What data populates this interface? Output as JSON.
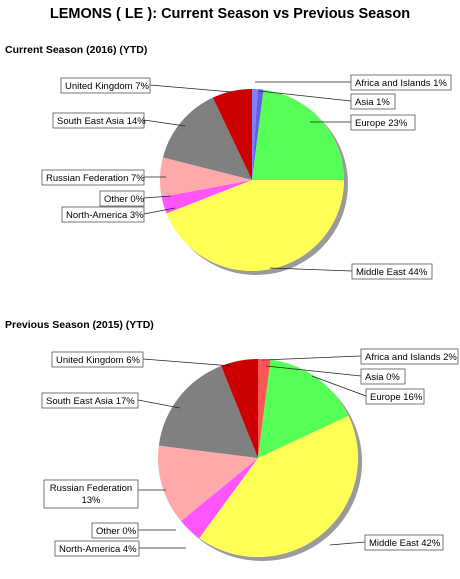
{
  "title": "LEMONS ( LE ): Current Season vs Previous Season",
  "chart_data": [
    {
      "type": "pie",
      "title": "Current Season (2016) (YTD)",
      "slices": [
        {
          "name": "Africa and Islands",
          "value": 1,
          "label": "Africa and Islands 1%",
          "color": "#8080ff"
        },
        {
          "name": "Asia",
          "value": 1,
          "label": "Asia 1%",
          "color": "#6060e0"
        },
        {
          "name": "Europe",
          "value": 23,
          "label": "Europe 23%",
          "color": "#55ff55"
        },
        {
          "name": "Middle East",
          "value": 44,
          "label": "Middle East 44%",
          "color": "#ffff55"
        },
        {
          "name": "North-America",
          "value": 3,
          "label": "North-America 3%",
          "color": "#ff55ff"
        },
        {
          "name": "Other",
          "value": 0,
          "label": "Other 0%",
          "color": "#cccccc"
        },
        {
          "name": "Russian Federation",
          "value": 7,
          "label": "Russian Federation 7%",
          "color": "#ffaaaa"
        },
        {
          "name": "South East Asia",
          "value": 14,
          "label": "South East Asia 14%",
          "color": "#808080"
        },
        {
          "name": "United Kingdom",
          "value": 7,
          "label": "United Kingdom 7%",
          "color": "#cc0000"
        }
      ]
    },
    {
      "type": "pie",
      "title": "Previous Season (2015) (YTD)",
      "slices": [
        {
          "name": "Africa and Islands",
          "value": 2,
          "label": "Africa and Islands 2%",
          "color": "#ff5555"
        },
        {
          "name": "Asia",
          "value": 0,
          "label": "Asia 0%",
          "color": "#6060e0"
        },
        {
          "name": "Europe",
          "value": 16,
          "label": "Europe 16%",
          "color": "#55ff55"
        },
        {
          "name": "Middle East",
          "value": 42,
          "label": "Middle East 42%",
          "color": "#ffff55"
        },
        {
          "name": "North-America",
          "value": 4,
          "label": "North-America 4%",
          "color": "#ff55ff"
        },
        {
          "name": "Other",
          "value": 0,
          "label": "Other 0%",
          "color": "#cccccc"
        },
        {
          "name": "Russian Federation",
          "value": 13,
          "label": "Russian Federation 13%",
          "label_lines": [
            "Russian Federation",
            "13%"
          ],
          "color": "#ffaaaa"
        },
        {
          "name": "South East Asia",
          "value": 17,
          "label": "South East Asia 17%",
          "color": "#808080"
        },
        {
          "name": "United Kingdom",
          "value": 6,
          "label": "United Kingdom 6%",
          "color": "#cc0000"
        }
      ]
    }
  ]
}
